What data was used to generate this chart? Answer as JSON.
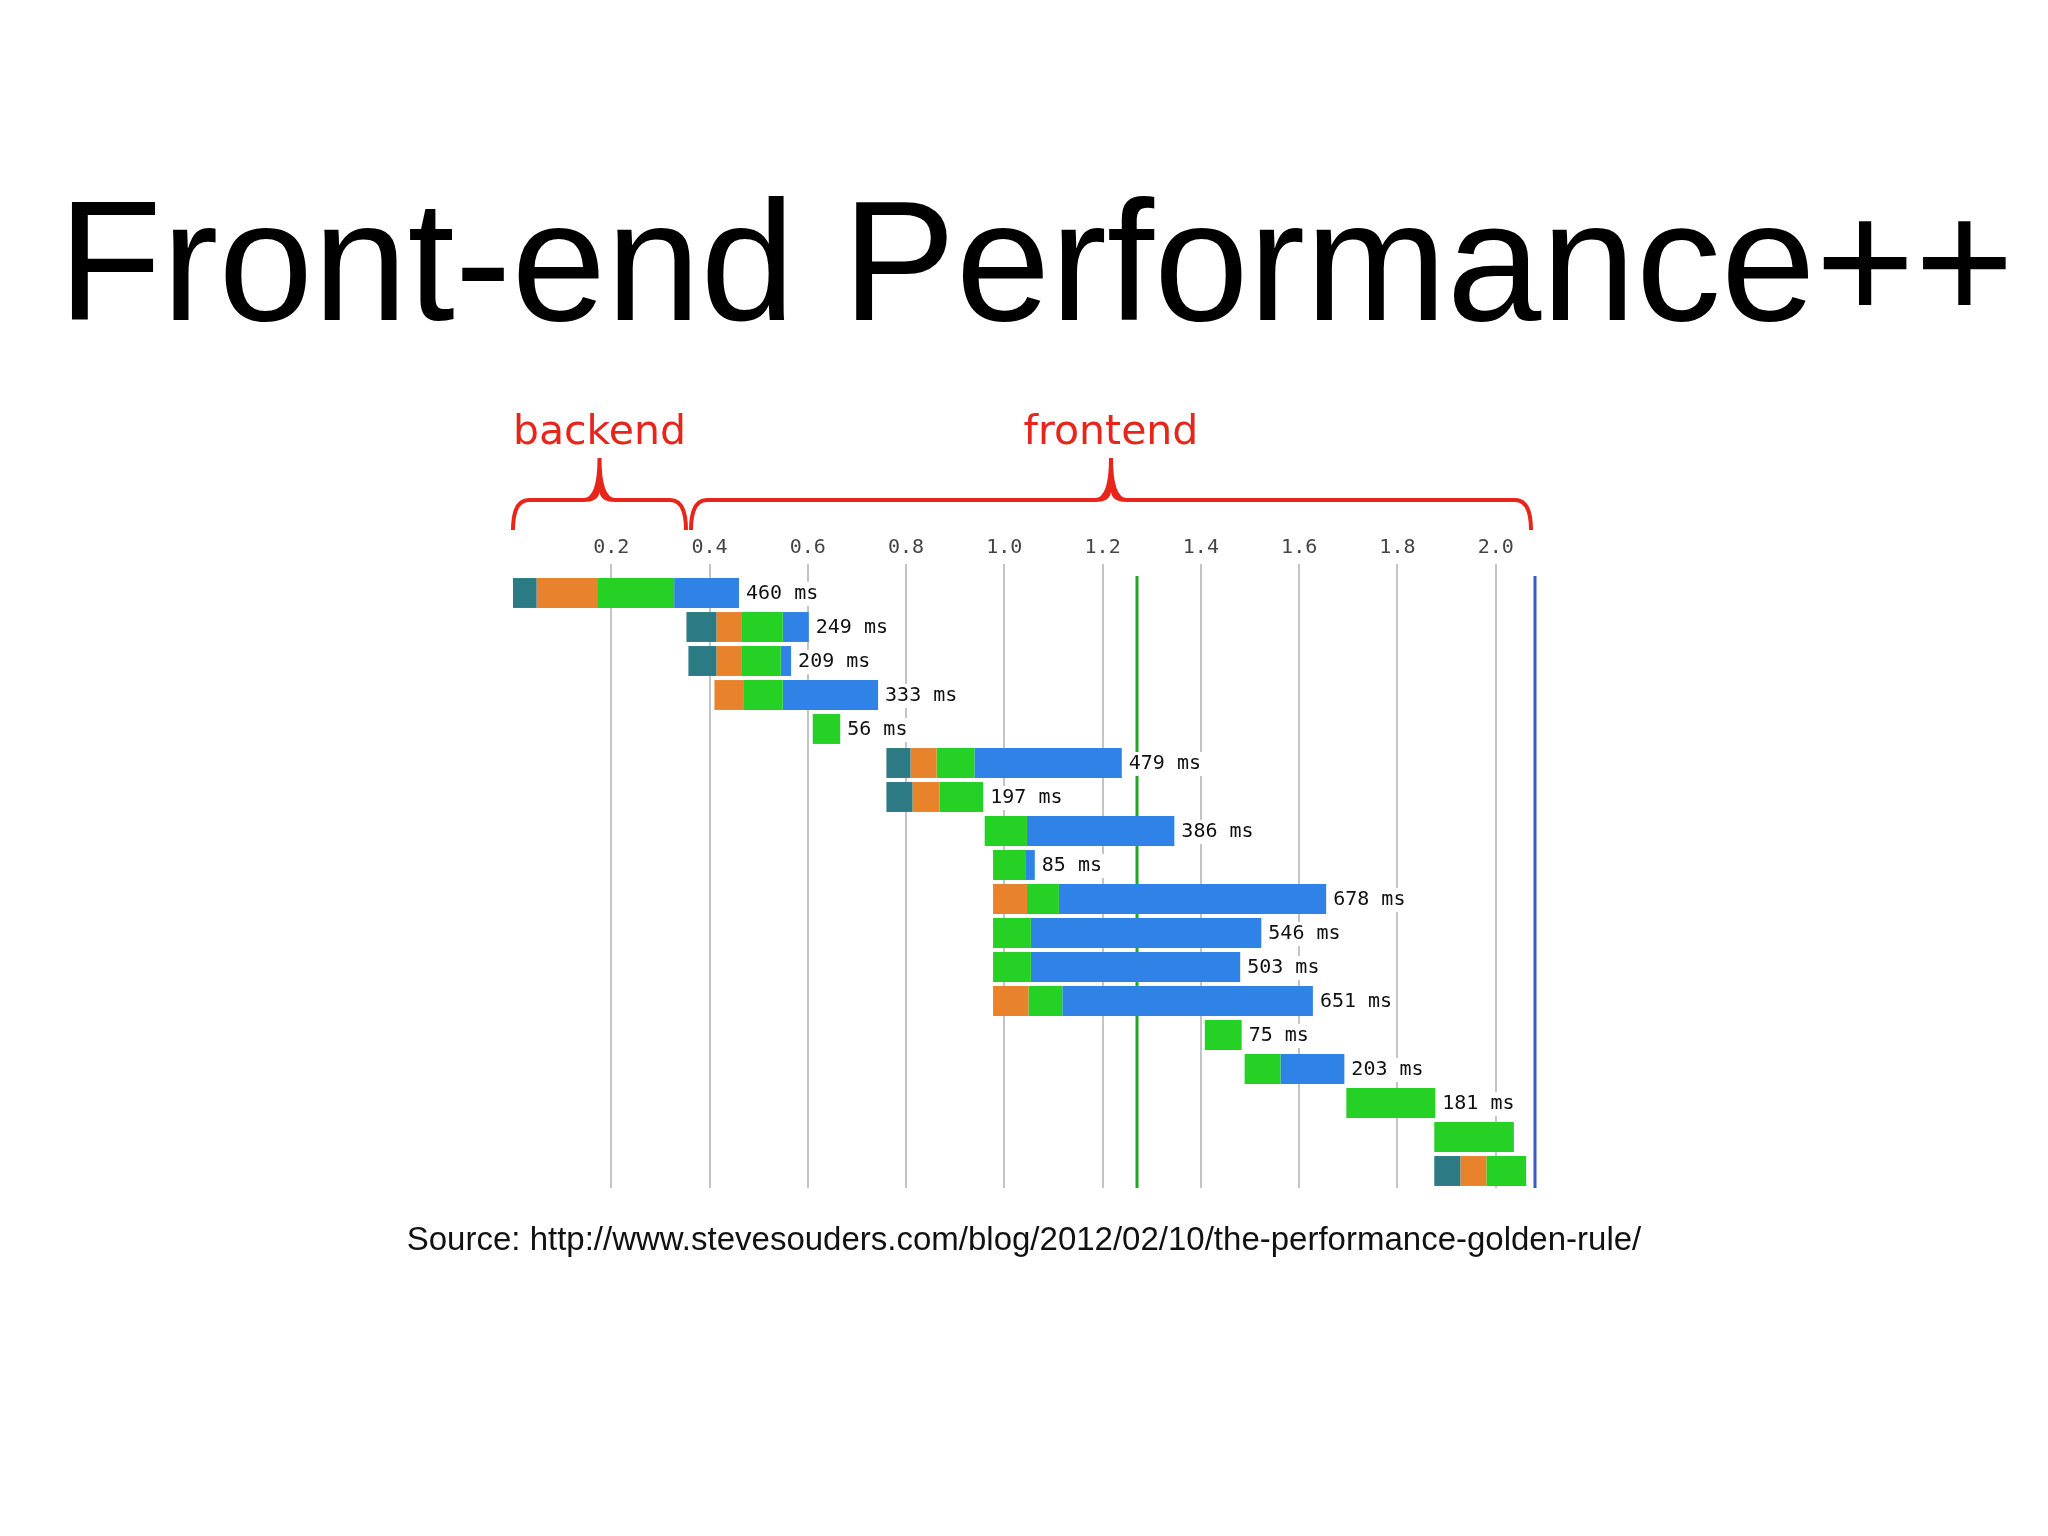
{
  "chart_data": {
    "type": "bar",
    "orientation": "horizontal",
    "title": "Front-end Performance++",
    "annotations": [
      "backend",
      "frontend",
      "Source: http://www.stevesouders.com/blog/2012/02/10/the-performance-golden-rule/"
    ],
    "categories": [
      null,
      null,
      null,
      null,
      null,
      null,
      null,
      null,
      null,
      null,
      null,
      null,
      null,
      null,
      null,
      null,
      null,
      null
    ],
    "series": [
      {
        "color": "#2b7a84",
        "base": [
          0,
          0.353,
          0.357,
          null,
          null,
          0.76,
          0.76,
          null,
          null,
          null,
          null,
          null,
          null,
          null,
          null,
          null,
          null,
          1.875
        ],
        "values": [
          0.048,
          0.061,
          0.057,
          null,
          null,
          0.049,
          0.053,
          null,
          null,
          null,
          null,
          null,
          null,
          null,
          null,
          null,
          null,
          0.053
        ]
      },
      {
        "color": "#e8832c",
        "base": [
          0.048,
          0.414,
          0.414,
          0.41,
          null,
          0.809,
          0.813,
          null,
          null,
          0.977,
          null,
          null,
          0.977,
          null,
          null,
          null,
          null,
          1.928
        ],
        "values": [
          0.125,
          0.052,
          0.052,
          0.06,
          null,
          0.053,
          0.055,
          null,
          null,
          0.069,
          null,
          null,
          0.072,
          null,
          null,
          null,
          null,
          0.053
        ]
      },
      {
        "color": "#26d126",
        "base": [
          0.173,
          0.466,
          0.466,
          0.47,
          0.61,
          0.862,
          0.868,
          0.96,
          0.977,
          1.046,
          0.977,
          0.977,
          1.049,
          1.408,
          1.489,
          1.696,
          1.875,
          1.981
        ],
        "values": [
          0.155,
          0.083,
          0.079,
          0.079,
          0.056,
          0.077,
          0.089,
          0.086,
          0.067,
          0.065,
          0.077,
          0.077,
          0.069,
          0.075,
          0.073,
          0.181,
          0.162,
          0.081
        ]
      },
      {
        "color": "#2f82e6",
        "base": [
          0.328,
          0.549,
          0.545,
          0.549,
          null,
          0.939,
          null,
          1.046,
          1.044,
          1.111,
          1.054,
          1.054,
          1.118,
          null,
          1.562,
          null,
          null,
          null
        ],
        "values": [
          0.132,
          0.053,
          0.021,
          0.194,
          null,
          0.3,
          null,
          0.3,
          0.018,
          0.544,
          0.469,
          0.426,
          0.51,
          null,
          0.13,
          null,
          null,
          null
        ]
      }
    ],
    "totals": [
      "460 ms",
      "249 ms",
      "209 ms",
      "333 ms",
      "56 ms",
      "479 ms",
      "197 ms",
      "386 ms",
      "85 ms",
      "678 ms",
      "546 ms",
      "503 ms",
      "651 ms",
      "75 ms",
      "203 ms",
      "181 ms",
      null,
      null
    ],
    "xlim": [
      0,
      2.08
    ],
    "xticks": [
      0.2,
      0.4,
      0.6,
      0.8,
      {
        "value": 1,
        "label": "1.0"
      },
      1.2,
      1.4,
      1.6,
      1.8,
      {
        "value": 2,
        "label": "2.0"
      }
    ],
    "grid": "x",
    "tick_labels": "x",
    "ref_lines": [
      {
        "axis": "x",
        "value": 1.27,
        "color": "#22a722"
      },
      {
        "axis": "x",
        "value": 2.08,
        "color": "#3a5cc0"
      }
    ]
  }
}
